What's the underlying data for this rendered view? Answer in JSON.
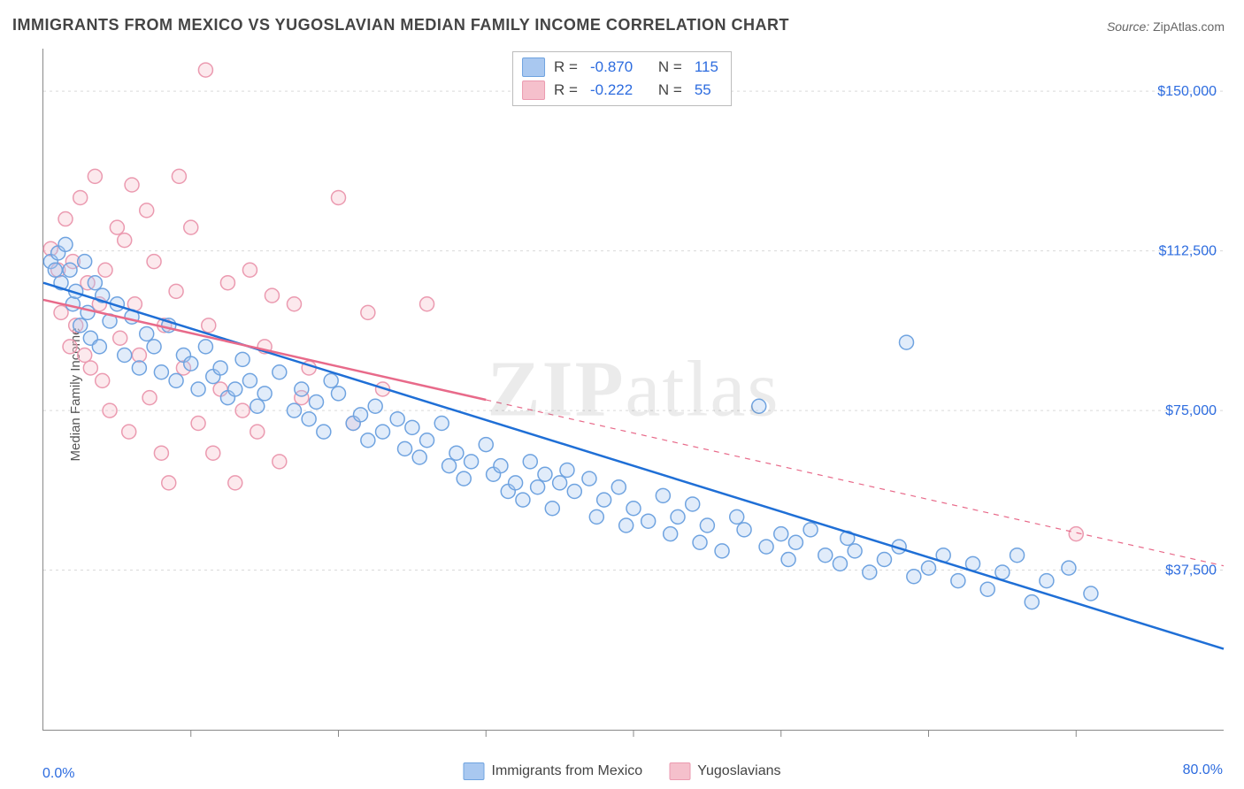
{
  "title": "IMMIGRANTS FROM MEXICO VS YUGOSLAVIAN MEDIAN FAMILY INCOME CORRELATION CHART",
  "source_label": "Source: ",
  "source_value": "ZipAtlas.com",
  "ylabel": "Median Family Income",
  "watermark_bold": "ZIP",
  "watermark_light": "atlas",
  "chart": {
    "type": "scatter",
    "background_color": "#ffffff",
    "grid_color": "#d9d9d9",
    "axis_color": "#888888",
    "tick_color": "#888888",
    "tick_label_color": "#2d6cdf",
    "xlim": [
      0,
      80
    ],
    "ylim": [
      0,
      160000
    ],
    "xtick_step": 10,
    "y_gridlines": [
      37500,
      75000,
      112500,
      150000
    ],
    "y_tick_labels": [
      "$37,500",
      "$75,000",
      "$112,500",
      "$150,000"
    ],
    "xlim_labels": [
      "0.0%",
      "80.0%"
    ],
    "marker_radius": 8,
    "marker_stroke_width": 1.5,
    "marker_fill_opacity": 0.35,
    "trend_line_width": 2.5,
    "label_fontsize": 15,
    "tick_fontsize": 16
  },
  "series": {
    "mexico": {
      "label": "Immigrants from Mexico",
      "color_fill": "#a9c8f0",
      "color_stroke": "#6fa3e0",
      "line_color": "#1f6fd6",
      "line_dash": "none",
      "R": "-0.870",
      "N": "115",
      "trend": {
        "x1": 0,
        "y1": 105000,
        "x2": 80,
        "y2": 19000
      },
      "points": [
        [
          0.5,
          110000
        ],
        [
          0.8,
          108000
        ],
        [
          1,
          112000
        ],
        [
          1.2,
          105000
        ],
        [
          1.5,
          114000
        ],
        [
          1.8,
          108000
        ],
        [
          2,
          100000
        ],
        [
          2.2,
          103000
        ],
        [
          2.5,
          95000
        ],
        [
          2.8,
          110000
        ],
        [
          3,
          98000
        ],
        [
          3.2,
          92000
        ],
        [
          3.5,
          105000
        ],
        [
          3.8,
          90000
        ],
        [
          4,
          102000
        ],
        [
          4.5,
          96000
        ],
        [
          5,
          100000
        ],
        [
          5.5,
          88000
        ],
        [
          6,
          97000
        ],
        [
          6.5,
          85000
        ],
        [
          7,
          93000
        ],
        [
          7.5,
          90000
        ],
        [
          8,
          84000
        ],
        [
          8.5,
          95000
        ],
        [
          9,
          82000
        ],
        [
          9.5,
          88000
        ],
        [
          10,
          86000
        ],
        [
          10.5,
          80000
        ],
        [
          11,
          90000
        ],
        [
          11.5,
          83000
        ],
        [
          12,
          85000
        ],
        [
          12.5,
          78000
        ],
        [
          13,
          80000
        ],
        [
          13.5,
          87000
        ],
        [
          14,
          82000
        ],
        [
          14.5,
          76000
        ],
        [
          15,
          79000
        ],
        [
          16,
          84000
        ],
        [
          17,
          75000
        ],
        [
          17.5,
          80000
        ],
        [
          18,
          73000
        ],
        [
          18.5,
          77000
        ],
        [
          19,
          70000
        ],
        [
          19.5,
          82000
        ],
        [
          20,
          79000
        ],
        [
          21,
          72000
        ],
        [
          21.5,
          74000
        ],
        [
          22,
          68000
        ],
        [
          22.5,
          76000
        ],
        [
          23,
          70000
        ],
        [
          24,
          73000
        ],
        [
          24.5,
          66000
        ],
        [
          25,
          71000
        ],
        [
          25.5,
          64000
        ],
        [
          26,
          68000
        ],
        [
          27,
          72000
        ],
        [
          27.5,
          62000
        ],
        [
          28,
          65000
        ],
        [
          28.5,
          59000
        ],
        [
          29,
          63000
        ],
        [
          30,
          67000
        ],
        [
          30.5,
          60000
        ],
        [
          31,
          62000
        ],
        [
          31.5,
          56000
        ],
        [
          32,
          58000
        ],
        [
          32.5,
          54000
        ],
        [
          33,
          63000
        ],
        [
          33.5,
          57000
        ],
        [
          34,
          60000
        ],
        [
          34.5,
          52000
        ],
        [
          35,
          58000
        ],
        [
          35.5,
          61000
        ],
        [
          36,
          56000
        ],
        [
          37,
          59000
        ],
        [
          37.5,
          50000
        ],
        [
          38,
          54000
        ],
        [
          39,
          57000
        ],
        [
          39.5,
          48000
        ],
        [
          40,
          52000
        ],
        [
          41,
          49000
        ],
        [
          42,
          55000
        ],
        [
          42.5,
          46000
        ],
        [
          43,
          50000
        ],
        [
          44,
          53000
        ],
        [
          44.5,
          44000
        ],
        [
          45,
          48000
        ],
        [
          46,
          42000
        ],
        [
          47,
          50000
        ],
        [
          47.5,
          47000
        ],
        [
          48.5,
          76000
        ],
        [
          49,
          43000
        ],
        [
          50,
          46000
        ],
        [
          50.5,
          40000
        ],
        [
          51,
          44000
        ],
        [
          52,
          47000
        ],
        [
          53,
          41000
        ],
        [
          54,
          39000
        ],
        [
          54.5,
          45000
        ],
        [
          55,
          42000
        ],
        [
          56,
          37000
        ],
        [
          57,
          40000
        ],
        [
          58,
          43000
        ],
        [
          58.5,
          91000
        ],
        [
          59,
          36000
        ],
        [
          60,
          38000
        ],
        [
          61,
          41000
        ],
        [
          62,
          35000
        ],
        [
          63,
          39000
        ],
        [
          64,
          33000
        ],
        [
          65,
          37000
        ],
        [
          66,
          41000
        ],
        [
          67,
          30000
        ],
        [
          68,
          35000
        ],
        [
          69.5,
          38000
        ],
        [
          71,
          32000
        ]
      ]
    },
    "yugo": {
      "label": "Yugoslavians",
      "color_fill": "#f5c0cc",
      "color_stroke": "#eb9ab0",
      "line_color": "#e86a8a",
      "line_dash": "solid_partial_dash",
      "R": "-0.222",
      "N": "55",
      "trend_solid": {
        "x1": 0,
        "y1": 101000,
        "x2": 30,
        "y2": 77500
      },
      "trend_dash": {
        "x1": 30,
        "y1": 77500,
        "x2": 80,
        "y2": 38500
      },
      "points": [
        [
          0.5,
          113000
        ],
        [
          1,
          108000
        ],
        [
          1.2,
          98000
        ],
        [
          1.5,
          120000
        ],
        [
          1.8,
          90000
        ],
        [
          2,
          110000
        ],
        [
          2.2,
          95000
        ],
        [
          2.5,
          125000
        ],
        [
          2.8,
          88000
        ],
        [
          3,
          105000
        ],
        [
          3.2,
          85000
        ],
        [
          3.5,
          130000
        ],
        [
          3.8,
          100000
        ],
        [
          4,
          82000
        ],
        [
          4.2,
          108000
        ],
        [
          4.5,
          75000
        ],
        [
          5,
          118000
        ],
        [
          5.2,
          92000
        ],
        [
          5.5,
          115000
        ],
        [
          5.8,
          70000
        ],
        [
          6,
          128000
        ],
        [
          6.2,
          100000
        ],
        [
          6.5,
          88000
        ],
        [
          7,
          122000
        ],
        [
          7.2,
          78000
        ],
        [
          7.5,
          110000
        ],
        [
          8,
          65000
        ],
        [
          8.2,
          95000
        ],
        [
          8.5,
          58000
        ],
        [
          9,
          103000
        ],
        [
          9.2,
          130000
        ],
        [
          9.5,
          85000
        ],
        [
          10,
          118000
        ],
        [
          10.5,
          72000
        ],
        [
          11,
          155000
        ],
        [
          11.2,
          95000
        ],
        [
          11.5,
          65000
        ],
        [
          12,
          80000
        ],
        [
          12.5,
          105000
        ],
        [
          13,
          58000
        ],
        [
          13.5,
          75000
        ],
        [
          14,
          108000
        ],
        [
          14.5,
          70000
        ],
        [
          15,
          90000
        ],
        [
          15.5,
          102000
        ],
        [
          16,
          63000
        ],
        [
          17,
          100000
        ],
        [
          17.5,
          78000
        ],
        [
          18,
          85000
        ],
        [
          20,
          125000
        ],
        [
          21,
          72000
        ],
        [
          22,
          98000
        ],
        [
          23,
          80000
        ],
        [
          26,
          100000
        ],
        [
          70,
          46000
        ]
      ]
    }
  },
  "legend_labels": {
    "R_label": "R =",
    "N_label": "N ="
  }
}
